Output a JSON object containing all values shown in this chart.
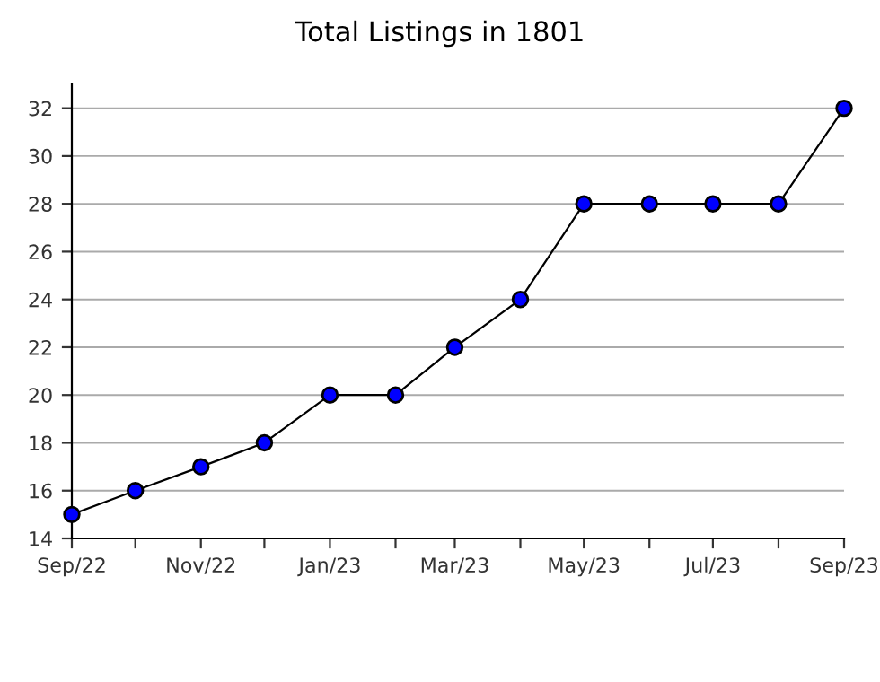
{
  "chart_data": {
    "type": "line",
    "title": "Total Listings in 1801",
    "x": [
      "2022-09",
      "2022-10",
      "2022-11",
      "2022-12",
      "2023-01",
      "2023-02",
      "2023-03",
      "2023-04",
      "2023-05",
      "2023-06",
      "2023-07",
      "2023-08",
      "2023-09"
    ],
    "series": [
      {
        "color": "#0000ff",
        "values": [
          15,
          16,
          17,
          18,
          20,
          20,
          22,
          24,
          28,
          28,
          28,
          28,
          32
        ]
      }
    ],
    "xlim": [
      "2022-09",
      "2023-09"
    ],
    "xticks": [
      {
        "value": "2022-09",
        "label": "Sep/22"
      },
      {
        "value": "2022-10",
        "label": null
      },
      {
        "value": "2022-11",
        "label": "Nov/22"
      },
      {
        "value": "2022-12",
        "label": null
      },
      {
        "value": "2023-01",
        "label": "Jan/23"
      },
      {
        "value": "2023-02",
        "label": null
      },
      {
        "value": "2023-03",
        "label": "Mar/23"
      },
      {
        "value": "2023-04",
        "label": null
      },
      {
        "value": "2023-05",
        "label": "May/23"
      },
      {
        "value": "2023-06",
        "label": null
      },
      {
        "value": "2023-07",
        "label": "Jul/23"
      },
      {
        "value": "2023-08",
        "label": null
      },
      {
        "value": "2023-09",
        "label": "Sep/23"
      }
    ],
    "ylim": [
      14,
      33
    ],
    "yticks": [
      14,
      16,
      18,
      20,
      22,
      24,
      26,
      28,
      30,
      32
    ],
    "grid": "y",
    "marker": "circle",
    "line_style": "solid",
    "legend": false
  }
}
